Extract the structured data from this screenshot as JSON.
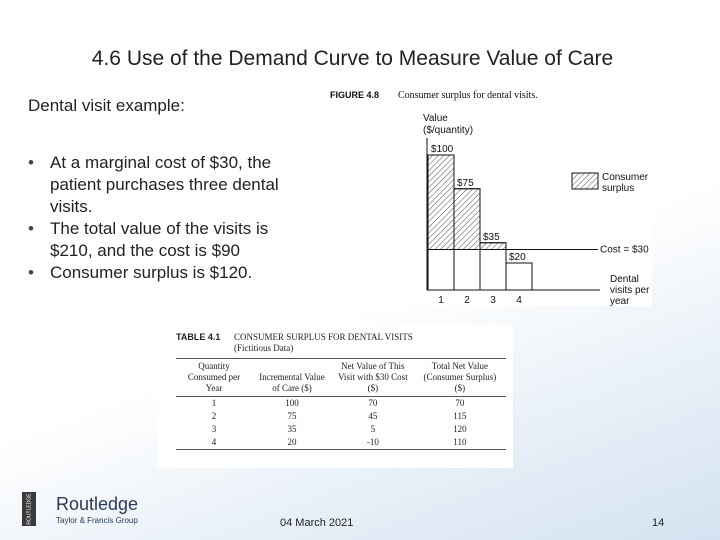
{
  "header": {
    "title": "4.6 Use of the Demand Curve to Measure Value of Care"
  },
  "body": {
    "intro": "Dental visit example:",
    "bullets": [
      "At a marginal cost of $30, the patient purchases three dental visits.",
      "The total value of the visits is $210, and the cost is $90",
      "Consumer surplus is $120."
    ]
  },
  "figure": {
    "label": "FIGURE 4.8",
    "caption": "Consumer surplus for dental visits.",
    "y_label": "Value",
    "y_unit": "($/quantity)",
    "x_label": "Dental visits per year",
    "legend": "Consumer surplus",
    "bars": {
      "categories": [
        "1",
        "2",
        "3",
        "4"
      ],
      "values": [
        100,
        75,
        35,
        20
      ],
      "value_labels": [
        "$100",
        "$75",
        "$35",
        "$20"
      ]
    },
    "cost": {
      "value": 30,
      "label": "Cost = $30"
    }
  },
  "table": {
    "label": "TABLE 4.1",
    "title": "CONSUMER SURPLUS FOR DENTAL VISITS",
    "subtitle": "(Fictitious Data)",
    "columns": [
      "Quantity Consumed per Year",
      "Incremental Value of Care ($)",
      "Net Value of This Visit with $30 Cost ($)",
      "Total Net Value (Consumer Surplus) ($)"
    ],
    "rows": [
      [
        1,
        100,
        70,
        70
      ],
      [
        2,
        75,
        45,
        115
      ],
      [
        3,
        35,
        5,
        120
      ],
      [
        4,
        20,
        -10,
        110
      ]
    ]
  },
  "footer": {
    "publisher": "Routledge",
    "group": "Taylor & Francis Group",
    "spine": "ROUTLEDGE",
    "date": "04 March 2021",
    "page": "14"
  }
}
